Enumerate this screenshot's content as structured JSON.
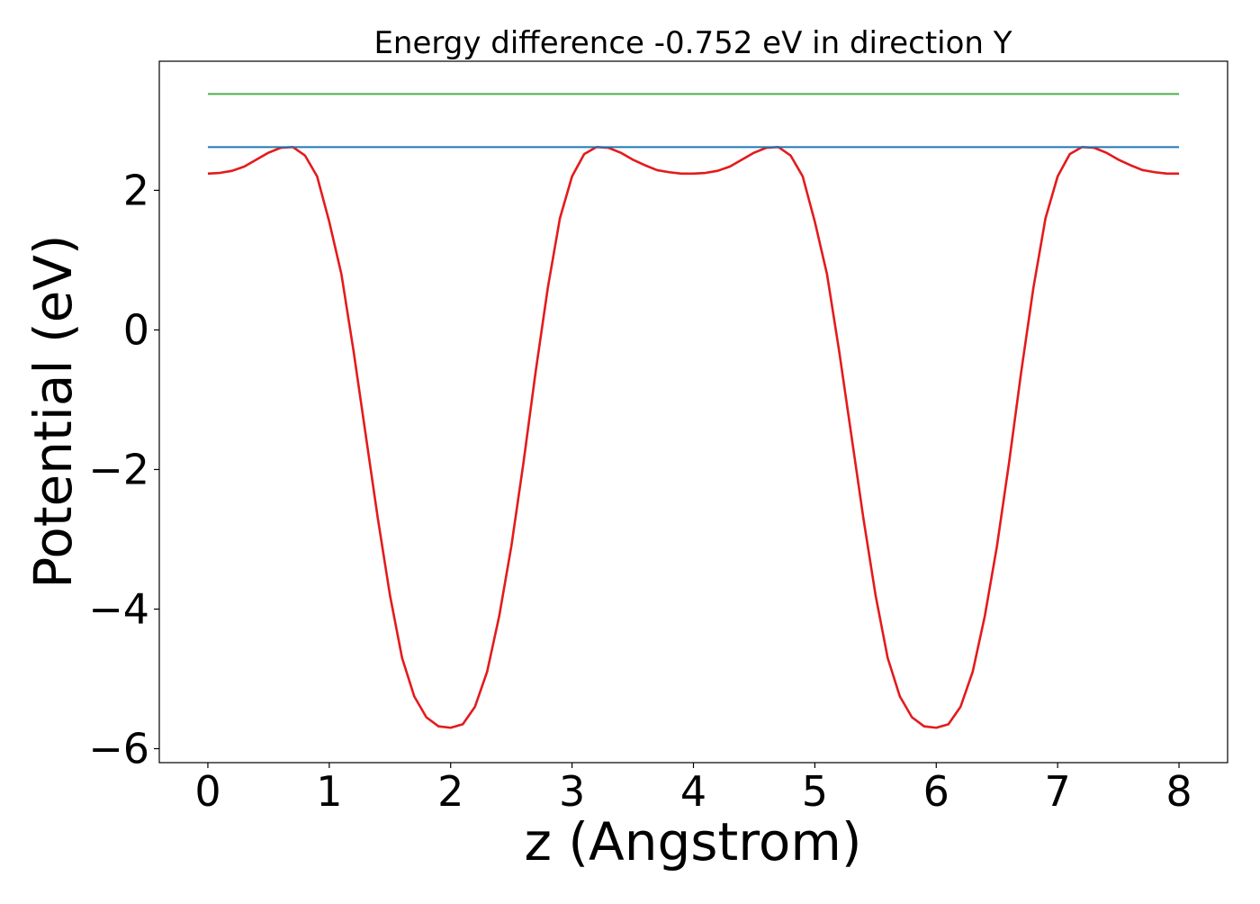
{
  "chart_data": {
    "type": "line",
    "title": "Energy difference -0.752 eV in direction Y",
    "xlabel": "z (Angstrom)",
    "ylabel": "Potential (eV)",
    "xlim": [
      -0.4,
      8.4
    ],
    "ylim": [
      -6.2,
      3.85
    ],
    "x_ticks": [
      0,
      1,
      2,
      3,
      4,
      5,
      6,
      7,
      8
    ],
    "x_tick_labels": [
      "0",
      "1",
      "2",
      "3",
      "4",
      "5",
      "6",
      "7",
      "8"
    ],
    "y_ticks": [
      -6,
      -4,
      -2,
      0,
      2
    ],
    "y_tick_labels": [
      "−6",
      "−4",
      "−2",
      "0",
      "2"
    ],
    "grid": false,
    "legend": "none",
    "series": [
      {
        "color": "#e41a1c",
        "x": [
          0.0,
          0.1,
          0.2,
          0.3,
          0.4,
          0.5,
          0.6,
          0.7,
          0.8,
          0.9,
          1.0,
          1.1,
          1.2,
          1.3,
          1.4,
          1.5,
          1.6,
          1.7,
          1.8,
          1.9,
          2.0,
          2.1,
          2.2,
          2.3,
          2.4,
          2.5,
          2.6,
          2.7,
          2.8,
          2.9,
          3.0,
          3.1,
          3.2,
          3.3,
          3.4,
          3.5,
          3.6,
          3.7,
          3.8,
          3.9,
          4.0,
          4.1,
          4.2,
          4.3,
          4.4,
          4.5,
          4.6,
          4.7,
          4.8,
          4.9,
          5.0,
          5.1,
          5.2,
          5.3,
          5.4,
          5.5,
          5.6,
          5.7,
          5.8,
          5.9,
          6.0,
          6.1,
          6.2,
          6.3,
          6.4,
          6.5,
          6.6,
          6.7,
          6.8,
          6.9,
          7.0,
          7.1,
          7.2,
          7.3,
          7.4,
          7.5,
          7.6,
          7.7,
          7.8,
          7.9,
          8.0
        ],
        "y": [
          2.24,
          2.25,
          2.28,
          2.34,
          2.44,
          2.54,
          2.61,
          2.62,
          2.5,
          2.2,
          1.55,
          0.8,
          -0.3,
          -1.5,
          -2.7,
          -3.8,
          -4.7,
          -5.25,
          -5.55,
          -5.68,
          -5.7,
          -5.65,
          -5.4,
          -4.9,
          -4.1,
          -3.1,
          -1.9,
          -0.6,
          0.6,
          1.6,
          2.2,
          2.52,
          2.62,
          2.61,
          2.54,
          2.44,
          2.36,
          2.29,
          2.26,
          2.24,
          2.24,
          2.25,
          2.28,
          2.34,
          2.44,
          2.54,
          2.61,
          2.62,
          2.5,
          2.2,
          1.55,
          0.8,
          -0.3,
          -1.5,
          -2.7,
          -3.8,
          -4.7,
          -5.25,
          -5.55,
          -5.68,
          -5.7,
          -5.65,
          -5.4,
          -4.9,
          -4.1,
          -3.1,
          -1.9,
          -0.6,
          0.6,
          1.6,
          2.2,
          2.52,
          2.62,
          2.61,
          2.54,
          2.44,
          2.36,
          2.29,
          2.26,
          2.24,
          2.24
        ]
      },
      {
        "color": "#1f77b4",
        "x": [
          0,
          8
        ],
        "y": [
          2.62,
          2.62
        ]
      },
      {
        "color": "#4daf4a",
        "x": [
          0,
          8
        ],
        "y": [
          3.38,
          3.38
        ]
      }
    ]
  }
}
